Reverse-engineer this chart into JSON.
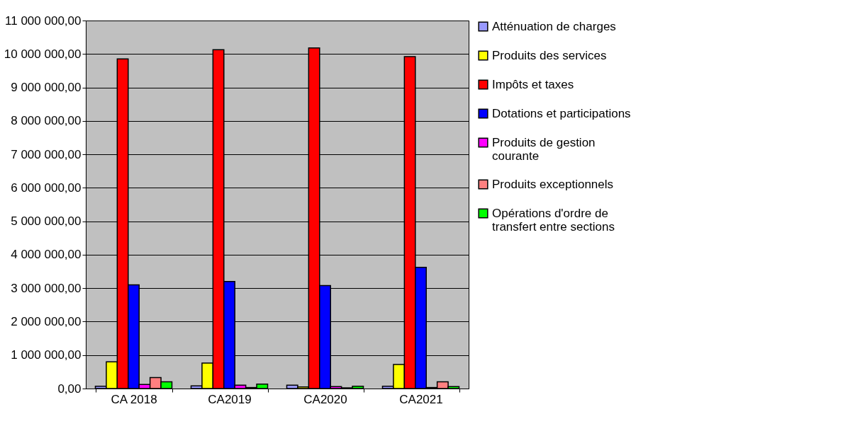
{
  "chart_data": {
    "type": "bar",
    "categories": [
      "CA 2018",
      "CA2019",
      "CA2020",
      "CA2021"
    ],
    "series": [
      {
        "name": "Atténuation de charges",
        "color": "#9999ff",
        "values": [
          70000,
          80000,
          100000,
          70000
        ]
      },
      {
        "name": "Produits des services",
        "color": "#ffff00",
        "values": [
          800000,
          760000,
          50000,
          720000
        ]
      },
      {
        "name": "Impôts et taxes",
        "color": "#ff0000",
        "values": [
          9850000,
          10130000,
          10180000,
          9920000
        ]
      },
      {
        "name": "Dotations et participations",
        "color": "#0000ff",
        "values": [
          3100000,
          3200000,
          3080000,
          3620000
        ]
      },
      {
        "name": "Produits de gestion courante",
        "color": "#ff00ff",
        "values": [
          120000,
          100000,
          60000,
          30000
        ]
      },
      {
        "name": "Produits exceptionnels",
        "color": "#ff8080",
        "values": [
          330000,
          30000,
          20000,
          200000
        ]
      },
      {
        "name": "Opérations d'ordre de transfert entre sections",
        "color": "#00ff00",
        "values": [
          200000,
          130000,
          70000,
          60000
        ]
      }
    ],
    "ylim": [
      0,
      11000000
    ],
    "yticks": [
      {
        "value": 0,
        "label": "0,00"
      },
      {
        "value": 1000000,
        "label": "1 000 000,00"
      },
      {
        "value": 2000000,
        "label": "2 000 000,00"
      },
      {
        "value": 3000000,
        "label": "3 000 000,00"
      },
      {
        "value": 4000000,
        "label": "4 000 000,00"
      },
      {
        "value": 5000000,
        "label": "5 000 000,00"
      },
      {
        "value": 6000000,
        "label": "6 000 000,00"
      },
      {
        "value": 7000000,
        "label": "7 000 000,00"
      },
      {
        "value": 8000000,
        "label": "8 000 000,00"
      },
      {
        "value": 9000000,
        "label": "9 000 000,00"
      },
      {
        "value": 10000000,
        "label": "10 000 000,00"
      },
      {
        "value": 11000000,
        "label": "11 000 000,00"
      }
    ],
    "grid": "y",
    "legend": "right"
  }
}
